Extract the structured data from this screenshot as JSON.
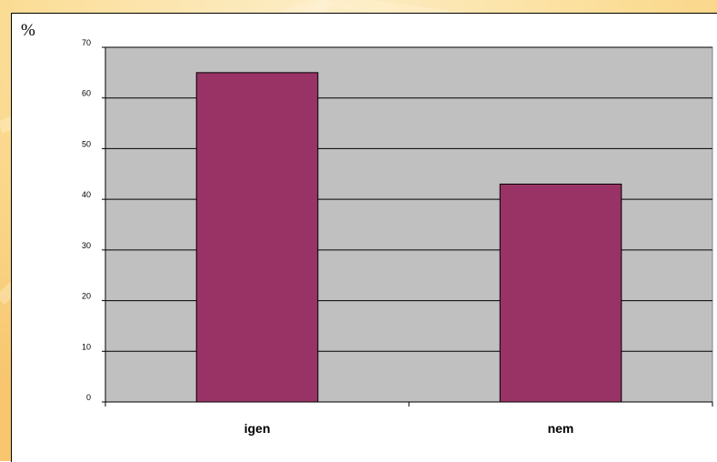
{
  "chart_data": {
    "type": "bar",
    "unit_label": "%",
    "categories": [
      "igen",
      "nem"
    ],
    "values": [
      65,
      43
    ],
    "ylim": [
      0,
      70
    ],
    "yticks": [
      0,
      10,
      20,
      30,
      40,
      50,
      60,
      70
    ],
    "grid": true,
    "legend": "none",
    "bar_color": "#993366",
    "plot_background": "#c0c0c0"
  },
  "colors": {
    "slide_background": "#fbd889",
    "slide_highlight": "#fcebbf",
    "panel_background": "#ffffff"
  }
}
